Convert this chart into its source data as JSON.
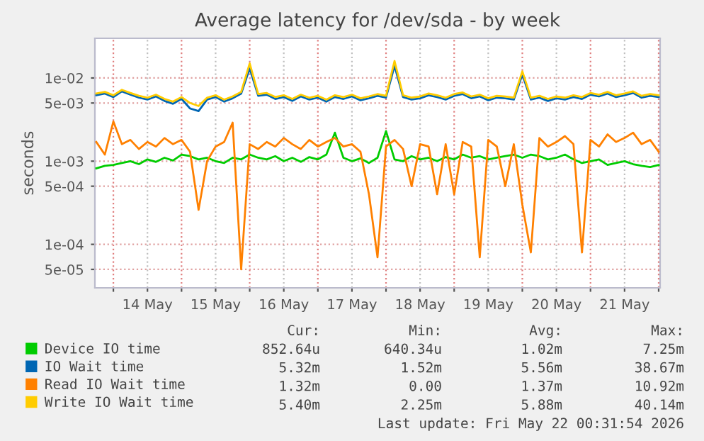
{
  "chart_data": {
    "type": "line",
    "title": "Average latency for /dev/sda - by week",
    "ylabel": "seconds",
    "log": "y",
    "x": [
      "2026-05-13T18:00",
      "2026-05-13T21:00",
      "2026-05-14T00:00",
      "2026-05-14T03:00",
      "2026-05-14T06:00",
      "2026-05-14T09:00",
      "2026-05-14T12:00",
      "2026-05-14T15:00",
      "2026-05-14T18:00",
      "2026-05-14T21:00",
      "2026-05-15T00:00",
      "2026-05-15T03:00",
      "2026-05-15T06:00",
      "2026-05-15T09:00",
      "2026-05-15T12:00",
      "2026-05-15T15:00",
      "2026-05-15T18:00",
      "2026-05-15T21:00",
      "2026-05-16T00:00",
      "2026-05-16T03:00",
      "2026-05-16T06:00",
      "2026-05-16T09:00",
      "2026-05-16T12:00",
      "2026-05-16T15:00",
      "2026-05-16T18:00",
      "2026-05-16T21:00",
      "2026-05-17T00:00",
      "2026-05-17T03:00",
      "2026-05-17T06:00",
      "2026-05-17T09:00",
      "2026-05-17T12:00",
      "2026-05-17T15:00",
      "2026-05-17T18:00",
      "2026-05-17T21:00",
      "2026-05-18T00:00",
      "2026-05-18T03:00",
      "2026-05-18T06:00",
      "2026-05-18T09:00",
      "2026-05-18T12:00",
      "2026-05-18T15:00",
      "2026-05-18T18:00",
      "2026-05-18T21:00",
      "2026-05-19T00:00",
      "2026-05-19T03:00",
      "2026-05-19T06:00",
      "2026-05-19T09:00",
      "2026-05-19T12:00",
      "2026-05-19T15:00",
      "2026-05-19T18:00",
      "2026-05-19T21:00",
      "2026-05-20T00:00",
      "2026-05-20T03:00",
      "2026-05-20T06:00",
      "2026-05-20T09:00",
      "2026-05-20T12:00",
      "2026-05-20T15:00",
      "2026-05-20T18:00",
      "2026-05-20T21:00",
      "2026-05-21T00:00",
      "2026-05-21T03:00",
      "2026-05-21T06:00",
      "2026-05-21T09:00",
      "2026-05-21T12:00",
      "2026-05-21T15:00",
      "2026-05-21T18:00",
      "2026-05-21T21:00",
      "2026-05-22T00:00"
    ],
    "series": [
      {
        "name": "Device IO time",
        "color": "#00cc00",
        "values": [
          0.00082,
          0.00088,
          0.0009,
          0.00095,
          0.001,
          0.00092,
          0.00105,
          0.00098,
          0.0011,
          0.00102,
          0.0012,
          0.00115,
          0.00105,
          0.0011,
          0.001,
          0.00095,
          0.0011,
          0.00105,
          0.0012,
          0.0011,
          0.00105,
          0.00115,
          0.001,
          0.0011,
          0.00098,
          0.00112,
          0.00105,
          0.0012,
          0.0022,
          0.0011,
          0.001,
          0.00108,
          0.00095,
          0.0011,
          0.0023,
          0.00105,
          0.001,
          0.00115,
          0.00105,
          0.0011,
          0.001,
          0.00112,
          0.00105,
          0.0012,
          0.0011,
          0.00115,
          0.00105,
          0.0011,
          0.00115,
          0.0012,
          0.0011,
          0.0012,
          0.00115,
          0.00105,
          0.0011,
          0.0012,
          0.00105,
          0.00095,
          0.001,
          0.00105,
          0.0009,
          0.00095,
          0.001,
          0.00092,
          0.00088,
          0.00085,
          0.0009
        ]
      },
      {
        "name": "IO Wait time",
        "color": "#0066b3",
        "values": [
          0.0062,
          0.0065,
          0.0059,
          0.0069,
          0.0063,
          0.0058,
          0.0055,
          0.006,
          0.0053,
          0.0049,
          0.0056,
          0.0043,
          0.004,
          0.0055,
          0.0059,
          0.0052,
          0.0057,
          0.0065,
          0.013,
          0.0061,
          0.0063,
          0.0056,
          0.0059,
          0.0053,
          0.006,
          0.0055,
          0.0058,
          0.0052,
          0.0059,
          0.0056,
          0.006,
          0.0054,
          0.0057,
          0.0061,
          0.0058,
          0.014,
          0.0059,
          0.0055,
          0.0057,
          0.0062,
          0.0059,
          0.0055,
          0.0061,
          0.0064,
          0.0057,
          0.006,
          0.0054,
          0.0058,
          0.0057,
          0.0055,
          0.011,
          0.0055,
          0.0058,
          0.0053,
          0.0057,
          0.0055,
          0.0059,
          0.0056,
          0.0063,
          0.006,
          0.0065,
          0.0059,
          0.0062,
          0.0066,
          0.0058,
          0.0061,
          0.0059
        ]
      },
      {
        "name": "Read IO Wait time",
        "color": "#ff8000",
        "values": [
          0.0017,
          0.0012,
          0.003,
          0.0016,
          0.0018,
          0.0014,
          0.0017,
          0.0015,
          0.0019,
          0.0016,
          0.0018,
          0.0013,
          0.00026,
          0.001,
          0.0015,
          0.0017,
          0.0029,
          5e-05,
          0.0016,
          0.0014,
          0.0017,
          0.0015,
          0.0019,
          0.0016,
          0.0014,
          0.0018,
          0.0015,
          0.0017,
          0.0019,
          0.0015,
          0.0016,
          0.0013,
          0.0004,
          7e-05,
          0.0015,
          0.0018,
          0.0014,
          0.0005,
          0.0016,
          0.0015,
          0.0004,
          0.0016,
          0.0004,
          0.0017,
          0.0015,
          7e-05,
          0.0018,
          0.0015,
          0.0005,
          0.0016,
          0.0003,
          8e-05,
          0.0019,
          0.0015,
          0.0017,
          0.002,
          0.0016,
          8e-05,
          0.0018,
          0.0015,
          0.0021,
          0.0017,
          0.0019,
          0.0022,
          0.0016,
          0.0018,
          0.0013
        ]
      },
      {
        "name": "Write IO Wait time",
        "color": "#ffcc00",
        "values": [
          0.0065,
          0.0068,
          0.0062,
          0.0072,
          0.0066,
          0.0061,
          0.0058,
          0.0063,
          0.0056,
          0.0052,
          0.0059,
          0.005,
          0.0046,
          0.0058,
          0.0062,
          0.0055,
          0.006,
          0.0068,
          0.015,
          0.0064,
          0.0066,
          0.0059,
          0.0062,
          0.0056,
          0.0063,
          0.0058,
          0.0061,
          0.0055,
          0.0062,
          0.0059,
          0.0063,
          0.0057,
          0.006,
          0.0064,
          0.0061,
          0.016,
          0.0062,
          0.0058,
          0.006,
          0.0065,
          0.0062,
          0.0058,
          0.0064,
          0.0067,
          0.006,
          0.0063,
          0.0057,
          0.0061,
          0.006,
          0.0058,
          0.012,
          0.0058,
          0.0061,
          0.0056,
          0.006,
          0.0058,
          0.0062,
          0.0059,
          0.0066,
          0.0063,
          0.0068,
          0.0062,
          0.0065,
          0.0069,
          0.0061,
          0.0064,
          0.0062
        ]
      }
    ],
    "xlim": [
      "2026-05-13T17:30",
      "2026-05-22T00:30"
    ],
    "xticks": [
      {
        "value": "2026-05-14T00:00",
        "label": null
      },
      {
        "value": "2026-05-14T12:00",
        "label": "14 May"
      },
      {
        "value": "2026-05-15T00:00",
        "label": null
      },
      {
        "value": "2026-05-15T12:00",
        "label": "15 May"
      },
      {
        "value": "2026-05-16T00:00",
        "label": null
      },
      {
        "value": "2026-05-16T12:00",
        "label": "16 May"
      },
      {
        "value": "2026-05-17T00:00",
        "label": null
      },
      {
        "value": "2026-05-17T12:00",
        "label": "17 May"
      },
      {
        "value": "2026-05-18T00:00",
        "label": null
      },
      {
        "value": "2026-05-18T12:00",
        "label": "18 May"
      },
      {
        "value": "2026-05-19T00:00",
        "label": null
      },
      {
        "value": "2026-05-19T12:00",
        "label": "19 May"
      },
      {
        "value": "2026-05-20T00:00",
        "label": null
      },
      {
        "value": "2026-05-20T12:00",
        "label": "20 May"
      },
      {
        "value": "2026-05-21T00:00",
        "label": null
      },
      {
        "value": "2026-05-21T12:00",
        "label": "21 May"
      },
      {
        "value": "2026-05-22T00:00",
        "label": null
      }
    ],
    "ylim": [
      3e-05,
      0.03
    ],
    "yticks": [
      {
        "value": 5e-05,
        "label": "5e-05"
      },
      {
        "value": 0.0001,
        "label": "1e-04"
      },
      {
        "value": 0.0005,
        "label": "5e-04"
      },
      {
        "value": 0.001,
        "label": "1e-03"
      },
      {
        "value": 0.005,
        "label": "5e-03"
      },
      {
        "value": 0.01,
        "label": "1e-02"
      }
    ],
    "grid": true,
    "legend": "bottom",
    "annotations": [
      "Cur:",
      "Min:",
      "Avg:",
      "Max:",
      "852.64u",
      "640.34u",
      "1.02m",
      "7.25m",
      "5.32m",
      "1.52m",
      "5.56m",
      "38.67m",
      "1.32m",
      "0.00",
      "1.37m",
      "10.92m",
      "5.40m",
      "2.25m",
      "5.88m",
      "40.14m",
      "Last update: Fri May 22 00:31:54 2026"
    ]
  }
}
